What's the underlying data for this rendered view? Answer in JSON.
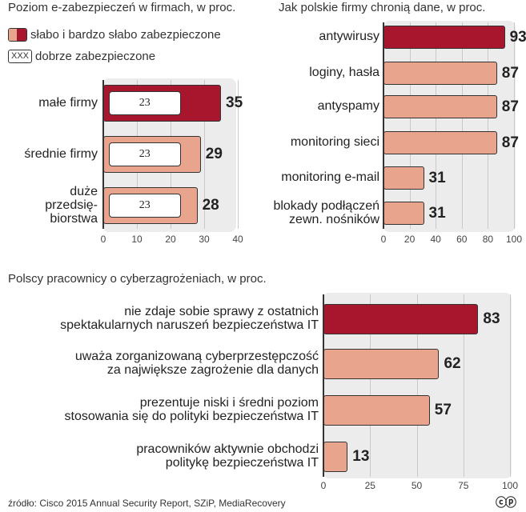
{
  "colors": {
    "dark": "#a8162e",
    "light": "#e8a48c",
    "panel": "#ececec"
  },
  "source": "źródło: Cisco 2015 Annual Security Report, SZiP, MediaRecovery",
  "logo": "PAP",
  "legend": {
    "weak_label": "słabo i bardzo słabo zabezpieczone",
    "good_box": "XXX",
    "good_label": "dobrze zabezpieczone"
  },
  "chart_data": [
    {
      "id": "c1",
      "type": "bar",
      "orientation": "horizontal",
      "title": "Poziom e-zabezpieczeń w firmach, w proc.",
      "categories": [
        "małe firmy",
        "średnie firmy",
        "duże przedsię-biorstwa"
      ],
      "category_lines": [
        [
          "małe firmy"
        ],
        [
          "średnie firmy"
        ],
        [
          "duże",
          "przedsię-",
          "biorstwa"
        ]
      ],
      "series": [
        {
          "name": "słabo i bardzo słabo zabezpieczone",
          "values": [
            35,
            29,
            28
          ]
        },
        {
          "name": "dobrze zabezpieczone",
          "values": [
            23,
            23,
            23
          ]
        }
      ],
      "highlight": [
        true,
        false,
        false
      ],
      "xlim": [
        0,
        40
      ],
      "ticks": [
        0,
        10,
        20,
        30,
        40
      ]
    },
    {
      "id": "c2",
      "type": "bar",
      "orientation": "horizontal",
      "title": "Jak polskie firmy chronią dane, w proc.",
      "categories": [
        "antywirusy",
        "loginy, hasła",
        "antyspamy",
        "monitoring sieci",
        "monitoring e-mail",
        "blokady podłączeń zewn. nośników"
      ],
      "category_lines": [
        [
          "antywirusy"
        ],
        [
          "loginy, hasła"
        ],
        [
          "antyspamy"
        ],
        [
          "monitoring sieci"
        ],
        [
          "monitoring e-mail"
        ],
        [
          "blokady podłączeń",
          "zewn. nośników"
        ]
      ],
      "values": [
        93,
        87,
        87,
        87,
        31,
        31
      ],
      "highlight": [
        true,
        false,
        false,
        false,
        false,
        false
      ],
      "xlim": [
        0,
        100
      ],
      "ticks": [
        0,
        20,
        40,
        60,
        80,
        100
      ]
    },
    {
      "id": "c3",
      "type": "bar",
      "orientation": "horizontal",
      "title": "Polscy pracownicy o cyberzagrożeniach, w proc.",
      "categories": [
        "nie zdaje sobie sprawy z ostatnich spektakularnych naruszeń bezpieczeństwa IT",
        "uważa zorganizowaną cyberprzestępczość za największe zagrożenie dla danych",
        "prezentuje niski i średni poziom stosowania się do polityki bezpieczeństwa IT",
        "pracowników aktywnie obchodzi politykę bezpieczeństwa IT"
      ],
      "category_lines": [
        [
          "nie zdaje sobie sprawy z ostatnich",
          "spektakularnych naruszeń bezpieczeństwa IT"
        ],
        [
          "uważa zorganizowaną cyberprzestępczość",
          "za największe zagrożenie dla danych"
        ],
        [
          "prezentuje niski i średni poziom",
          "stosowania się do polityki bezpieczeństwa IT"
        ],
        [
          "pracowników aktywnie obchodzi",
          "politykę bezpieczeństwa IT"
        ]
      ],
      "values": [
        83,
        62,
        57,
        13
      ],
      "highlight": [
        true,
        false,
        false,
        false
      ],
      "xlim": [
        0,
        100
      ],
      "ticks": [
        0,
        25,
        50,
        75,
        100
      ]
    }
  ]
}
